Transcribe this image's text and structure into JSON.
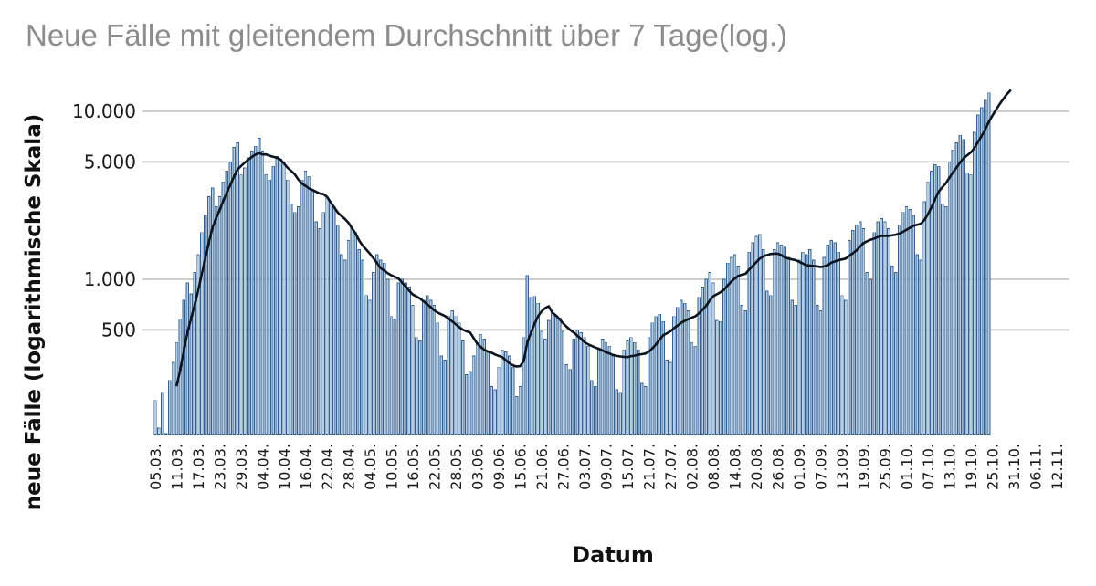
{
  "chart_data": {
    "type": "bar",
    "overlay": "line",
    "title": "Neue Fälle mit gleitendem Durchschnitt über 7 Tage(log.)",
    "xlabel": "Datum",
    "ylabel": "neue Fälle (logarithmische Skala)",
    "y_scale": "log",
    "ylim": [
      115,
      15000
    ],
    "grid": "horizontal",
    "legend": "none",
    "y_ticks": [
      {
        "label": "10.000",
        "value": 10000
      },
      {
        "label": "5.000",
        "value": 5000
      },
      {
        "label": "1.000",
        "value": 1000
      },
      {
        "label": "500",
        "value": 500
      }
    ],
    "x_tick_interval_days": 6,
    "x_tick_labels": [
      "05.03.",
      "11.03.",
      "17.03.",
      "23.03.",
      "29.03.",
      "04.04.",
      "10.04.",
      "16.04.",
      "22.04.",
      "28.04.",
      "04.05.",
      "10.05.",
      "16.05.",
      "22.05.",
      "28.05.",
      "03.06.",
      "09.06.",
      "15.06.",
      "21.06.",
      "27.06.",
      "03.07.",
      "09.07.",
      "15.07.",
      "21.07.",
      "27.07.",
      "02.08.",
      "08.08.",
      "14.08.",
      "20.08.",
      "26.08.",
      "01.09.",
      "07.09.",
      "13.09.",
      "19.09.",
      "25.09.",
      "01.10.",
      "07.10.",
      "13.10.",
      "19.10.",
      "25.10.",
      "31.10.",
      "06.11.",
      "12.11."
    ],
    "bars_start_date": "05.03.",
    "bars_end_date": "24.10.",
    "values": [
      190,
      130,
      210,
      120,
      250,
      320,
      420,
      580,
      750,
      950,
      820,
      1100,
      1400,
      1900,
      2400,
      3100,
      3500,
      2700,
      3100,
      3800,
      4400,
      5000,
      6100,
      6500,
      4200,
      4600,
      5300,
      5800,
      6200,
      6900,
      5800,
      4200,
      3900,
      4700,
      5400,
      5200,
      5000,
      3900,
      2800,
      2500,
      2700,
      3900,
      4400,
      4100,
      3400,
      2200,
      2000,
      2500,
      3100,
      2900,
      2700,
      2100,
      1400,
      1300,
      1700,
      2000,
      1900,
      1500,
      1300,
      800,
      750,
      1100,
      1400,
      1300,
      1250,
      1000,
      600,
      580,
      950,
      1000,
      950,
      900,
      700,
      450,
      430,
      750,
      800,
      750,
      700,
      550,
      350,
      330,
      600,
      650,
      600,
      550,
      430,
      270,
      280,
      350,
      420,
      470,
      440,
      370,
      230,
      220,
      300,
      380,
      370,
      350,
      300,
      200,
      230,
      450,
      1050,
      780,
      790,
      720,
      490,
      440,
      570,
      640,
      610,
      590,
      490,
      310,
      290,
      440,
      500,
      480,
      450,
      400,
      250,
      230,
      390,
      440,
      420,
      400,
      350,
      220,
      210,
      380,
      430,
      450,
      420,
      380,
      240,
      230,
      450,
      550,
      600,
      620,
      560,
      330,
      320,
      600,
      680,
      750,
      720,
      650,
      420,
      400,
      780,
      900,
      1000,
      1100,
      950,
      570,
      560,
      1000,
      1250,
      1350,
      1400,
      1200,
      700,
      650,
      1450,
      1650,
      1800,
      1850,
      1500,
      850,
      800,
      1500,
      1650,
      1600,
      1550,
      1350,
      750,
      700,
      1300,
      1450,
      1400,
      1500,
      1300,
      700,
      650,
      1350,
      1600,
      1700,
      1650,
      1450,
      800,
      750,
      1700,
      1950,
      2100,
      2200,
      2000,
      1100,
      1000,
      1900,
      2200,
      2300,
      2200,
      2000,
      1200,
      1100,
      2100,
      2500,
      2700,
      2600,
      2400,
      1400,
      1300,
      2900,
      3800,
      4400,
      4800,
      4700,
      2800,
      2700,
      5000,
      5900,
      6500,
      7200,
      6800,
      4300,
      4200,
      7500,
      9500,
      10500,
      11600,
      12900
    ],
    "moving_average": {
      "description": "gleitender Durchschnitt über 7 Tage",
      "window_days": 7,
      "line_end_date": "30.10.",
      "tail_values": [
        9400,
        10200,
        11000,
        11800,
        12600,
        13300
      ]
    },
    "colors": {
      "bar_fill": "#b7cde4",
      "bar_stroke": "#336191",
      "line": "#0c1420",
      "grid": "#c6c6c6",
      "tick_text": "#1a1a1a",
      "title_text": "#8c8c8c"
    }
  }
}
